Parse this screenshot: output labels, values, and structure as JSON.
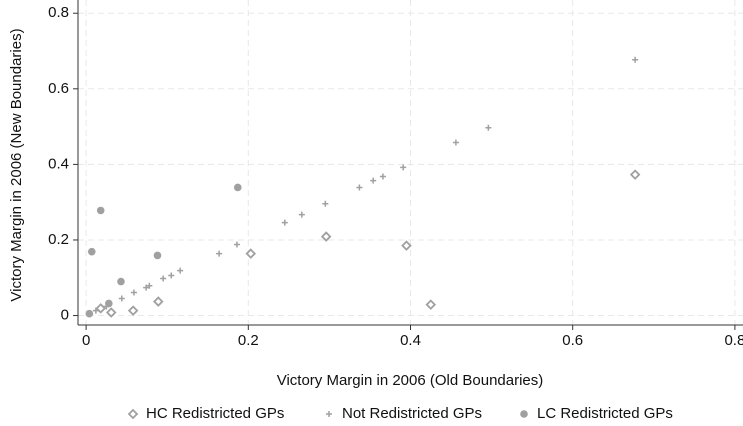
{
  "chart_data": {
    "type": "scatter",
    "x_label": "Victory Margin in 2006 (Old Boundaries)",
    "y_label": "Victory Margin in 2006 (New Boundaries)",
    "xlim": [
      -0.01,
      0.81
    ],
    "ylim": [
      -0.025,
      0.835
    ],
    "xticks": [
      0,
      0.2,
      0.4,
      0.6,
      0.8
    ],
    "yticks": [
      0,
      0.2,
      0.4,
      0.6,
      0.8
    ],
    "grid": true,
    "legend": "bottom",
    "series": [
      {
        "name": "HC Redistricted GPs",
        "color": "#a0a0a0",
        "marker": "diamond",
        "x": [
          0.018,
          0.031,
          0.058,
          0.089,
          0.203,
          0.296,
          0.395,
          0.425,
          0.677
        ],
        "values": [
          0.019,
          0.008,
          0.013,
          0.037,
          0.164,
          0.209,
          0.185,
          0.029,
          0.373
        ]
      },
      {
        "name": "Not Redistricted GPs",
        "color": "#a0a0a0",
        "marker": "plus",
        "x": [
          0.004,
          0.012,
          0.025,
          0.044,
          0.059,
          0.074,
          0.078,
          0.095,
          0.105,
          0.116,
          0.164,
          0.186,
          0.245,
          0.266,
          0.295,
          0.337,
          0.354,
          0.366,
          0.391,
          0.456,
          0.496,
          0.677
        ],
        "values": [
          0.005,
          0.013,
          0.024,
          0.045,
          0.061,
          0.074,
          0.079,
          0.098,
          0.106,
          0.119,
          0.164,
          0.188,
          0.246,
          0.267,
          0.296,
          0.339,
          0.357,
          0.368,
          0.392,
          0.458,
          0.497,
          0.677
        ]
      },
      {
        "name": "LC Redistricted GPs",
        "color": "#a0a0a0",
        "marker": "circle",
        "x": [
          0.004,
          0.007,
          0.018,
          0.028,
          0.043,
          0.088,
          0.187
        ],
        "values": [
          0.005,
          0.169,
          0.278,
          0.032,
          0.09,
          0.159,
          0.339
        ]
      }
    ]
  }
}
